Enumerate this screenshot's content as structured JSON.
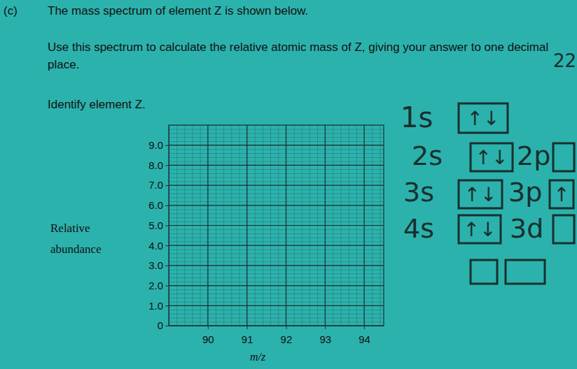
{
  "chart_data": {
    "type": "bar",
    "annotations": [
      "(c)",
      "The mass spectrum of element Z is shown below.",
      "Use this spectrum to calculate the relative atomic mass of Z, giving your answer to one decimal place.",
      "Identify element Z."
    ],
    "handwritten_notes": [
      "22",
      "1s",
      "↑↓",
      "2s",
      "↑↓",
      "2p",
      "3s",
      "↑↓",
      "3p",
      "↑",
      "4s",
      "↑↓",
      "3d"
    ],
    "xlabel": "m/z",
    "ylabel": "Relative abundance",
    "x": [],
    "values": [],
    "xlim": [
      89,
      94.5
    ],
    "xticks": [
      90,
      91,
      92,
      93,
      94
    ],
    "ylim": [
      0,
      10
    ],
    "yticks": [
      0,
      {
        "value": 1,
        "label": "1.0"
      },
      {
        "value": 2,
        "label": "2.0"
      },
      {
        "value": 3,
        "label": "3.0"
      },
      {
        "value": 4,
        "label": "4.0"
      },
      {
        "value": 5,
        "label": "5.0"
      },
      {
        "value": 6,
        "label": "6.0"
      },
      {
        "value": 7,
        "label": "7.0"
      },
      {
        "value": 8,
        "label": "8.0"
      },
      {
        "value": 9,
        "label": "9.0"
      }
    ],
    "grid": true,
    "color": "#1b2a2a"
  }
}
